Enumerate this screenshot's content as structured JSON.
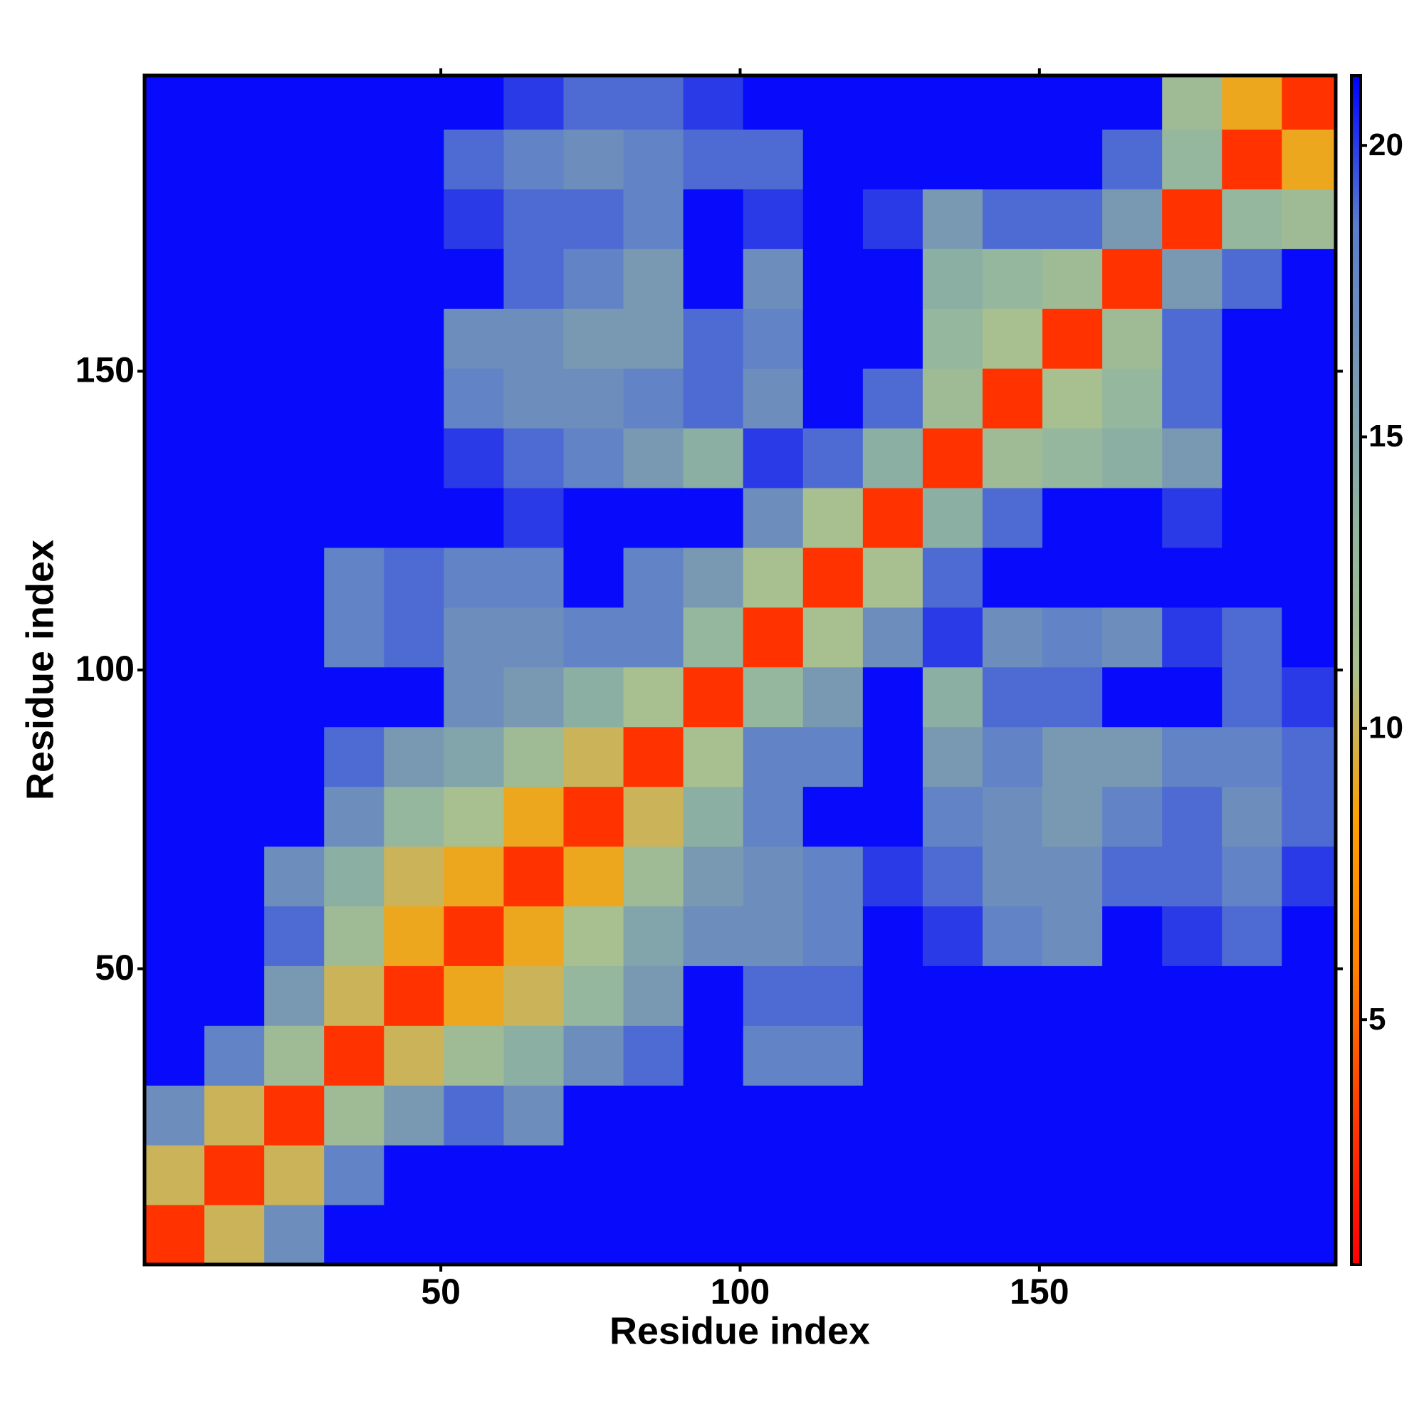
{
  "chart_data": {
    "type": "heatmap",
    "xlabel": "Residue index",
    "ylabel": "Residue index",
    "x_bins": [
      0.5,
      10.5,
      20.5,
      30.5,
      40.5,
      50.5,
      60.5,
      70.5,
      80.5,
      90.5,
      100.5,
      110.5,
      120.5,
      130.5,
      140.5,
      150.5,
      160.5,
      170.5,
      180.5,
      190.5,
      199.5
    ],
    "y_bins": [
      0.5,
      10.5,
      20.5,
      30.5,
      40.5,
      50.5,
      60.5,
      70.5,
      80.5,
      90.5,
      100.5,
      110.5,
      120.5,
      130.5,
      140.5,
      150.5,
      160.5,
      170.5,
      180.5,
      190.5,
      199.5
    ],
    "z": [
      [
        3,
        10,
        17,
        21,
        21,
        21,
        21,
        21,
        21,
        21,
        21,
        21,
        21,
        21,
        21,
        21,
        21,
        21,
        21,
        21
      ],
      [
        10,
        3,
        10,
        18,
        21,
        21,
        21,
        21,
        21,
        21,
        21,
        21,
        21,
        21,
        21,
        21,
        21,
        21,
        21,
        21
      ],
      [
        17,
        10,
        3,
        12,
        16,
        19,
        17,
        21,
        21,
        21,
        21,
        21,
        21,
        21,
        21,
        21,
        21,
        21,
        21,
        21
      ],
      [
        21,
        18,
        12,
        3,
        10,
        12,
        14,
        17,
        19,
        21,
        18,
        18,
        21,
        21,
        21,
        21,
        21,
        21,
        21,
        21
      ],
      [
        21,
        21,
        16,
        10,
        3,
        9,
        10,
        13,
        16,
        21,
        19,
        19,
        21,
        21,
        21,
        21,
        21,
        21,
        21,
        21
      ],
      [
        21,
        21,
        19,
        12,
        9,
        3,
        9,
        11,
        15,
        17,
        17,
        18,
        21,
        20,
        18,
        17,
        21,
        20,
        19,
        21
      ],
      [
        21,
        21,
        17,
        14,
        10,
        9,
        3,
        9,
        12,
        16,
        17,
        18,
        20,
        19,
        17,
        17,
        19,
        19,
        18,
        20
      ],
      [
        21,
        21,
        21,
        17,
        13,
        11,
        9,
        3,
        10,
        14,
        18,
        21,
        21,
        18,
        17,
        16,
        18,
        19,
        17,
        19
      ],
      [
        21,
        21,
        21,
        19,
        16,
        15,
        12,
        10,
        3,
        11,
        18,
        18,
        21,
        16,
        18,
        16,
        16,
        18,
        18,
        19
      ],
      [
        21,
        21,
        21,
        21,
        21,
        17,
        16,
        14,
        11,
        3,
        13,
        16,
        21,
        14,
        19,
        19,
        21,
        21,
        19,
        20
      ],
      [
        21,
        21,
        21,
        18,
        19,
        17,
        17,
        18,
        18,
        13,
        3,
        11,
        17,
        20,
        17,
        18,
        17,
        20,
        19,
        21
      ],
      [
        21,
        21,
        21,
        18,
        19,
        18,
        18,
        21,
        18,
        16,
        11,
        3,
        11,
        19,
        21,
        21,
        21,
        21,
        21,
        21
      ],
      [
        21,
        21,
        21,
        21,
        21,
        21,
        20,
        21,
        21,
        21,
        17,
        11,
        3,
        14,
        19,
        21,
        21,
        20,
        21,
        21
      ],
      [
        21,
        21,
        21,
        21,
        21,
        20,
        19,
        18,
        16,
        14,
        20,
        19,
        14,
        3,
        12,
        13,
        14,
        16,
        21,
        21
      ],
      [
        21,
        21,
        21,
        21,
        21,
        18,
        17,
        17,
        18,
        19,
        17,
        21,
        19,
        12,
        3,
        11,
        13,
        19,
        21,
        21
      ],
      [
        21,
        21,
        21,
        21,
        21,
        17,
        17,
        16,
        16,
        19,
        18,
        21,
        21,
        13,
        11,
        3,
        12,
        19,
        21,
        21
      ],
      [
        21,
        21,
        21,
        21,
        21,
        21,
        19,
        18,
        16,
        21,
        17,
        21,
        21,
        14,
        13,
        12,
        3,
        16,
        19,
        21
      ],
      [
        21,
        21,
        21,
        21,
        21,
        20,
        19,
        19,
        18,
        21,
        20,
        21,
        20,
        16,
        19,
        19,
        16,
        3,
        13,
        12
      ],
      [
        21,
        21,
        21,
        21,
        21,
        19,
        18,
        17,
        18,
        19,
        19,
        21,
        21,
        21,
        21,
        21,
        19,
        13,
        3,
        9
      ],
      [
        21,
        21,
        21,
        21,
        21,
        21,
        20,
        19,
        19,
        20,
        21,
        21,
        21,
        21,
        21,
        21,
        21,
        12,
        9,
        3
      ]
    ],
    "xlim": [
      0.5,
      199.5
    ],
    "ylim": [
      0.5,
      199.5
    ],
    "xticks": [
      50,
      100,
      150
    ],
    "yticks": [
      50,
      100,
      150
    ],
    "zlim": [
      0.8,
      21.2
    ],
    "zticks": [
      5,
      10,
      15,
      20
    ],
    "colors": [
      "#ff0000",
      "#ff3a00",
      "#ff8000",
      "#ffa000",
      "#a8c090",
      "#90b4a0",
      "#7898b4",
      "#5a7ccc",
      "#0000ff"
    ]
  }
}
